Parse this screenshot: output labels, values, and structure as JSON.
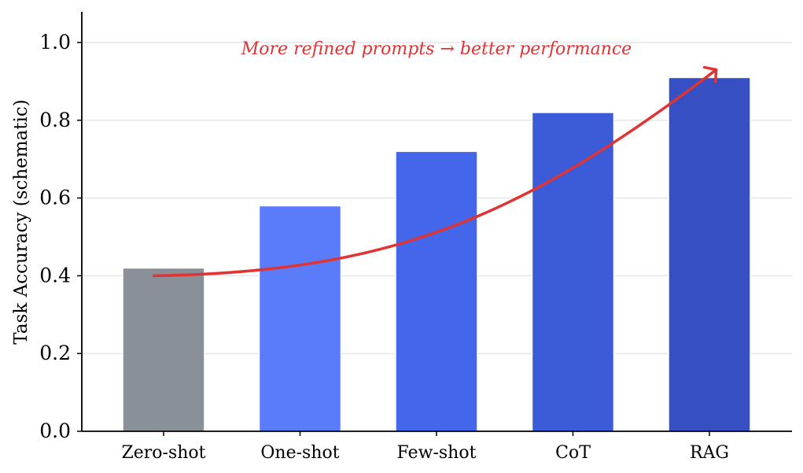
{
  "chart_data": {
    "type": "bar",
    "title": "",
    "xlabel": "",
    "ylabel": "Task Accuracy (schematic)",
    "categories": [
      "Zero-shot",
      "One-shot",
      "Few-shot",
      "CoT",
      "RAG"
    ],
    "values": [
      0.42,
      0.58,
      0.72,
      0.82,
      0.91
    ],
    "colors": [
      "#8a9097",
      "#5b7cfa",
      "#4466ea",
      "#3c5bd9",
      "#3650c4"
    ],
    "ylim": [
      0,
      1.08
    ],
    "yticks": [
      "0.0",
      "0.2",
      "0.4",
      "0.6",
      "0.8",
      "1.0"
    ],
    "grid": "horizontal",
    "annotation": {
      "text": "More refined prompts → better performance",
      "color": "#e03333",
      "arrow_start": [
        -0.07,
        0.4
      ],
      "arrow_end": [
        4.05,
        0.93
      ]
    }
  }
}
